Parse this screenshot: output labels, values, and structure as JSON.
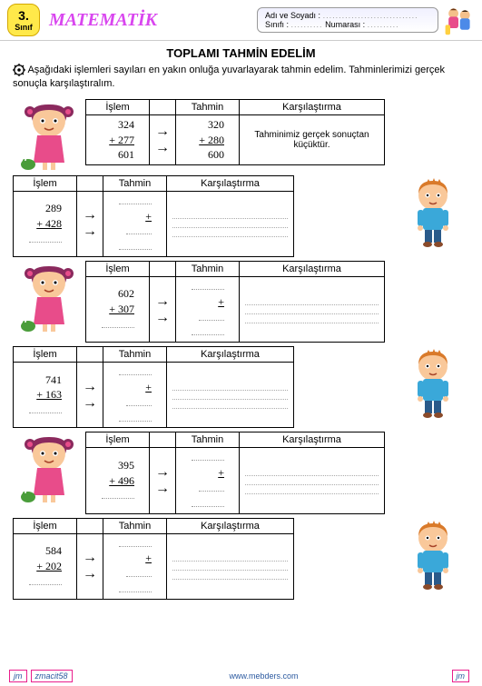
{
  "header": {
    "grade_num": "3.",
    "grade_label": "Sınıf",
    "subject": "MATEMATİK",
    "name_label": "Adı ve Soyadı :",
    "class_label": "Sınıfı :",
    "number_label": "Numarası :"
  },
  "title": "TOPLAMI  TAHMİN  EDELİM",
  "instructions": "Aşağıdaki işlemleri sayıları  en yakın onluğa  yuvarlayarak tahmin edelim. Tahminlerimizi  gerçek  sonuçla karşılaştıralım.",
  "labels": {
    "islem": "İşlem",
    "tahmin": "Tahmin",
    "karsilastirma": "Karşılaştırma"
  },
  "example": {
    "a": "324",
    "b": "+ 277",
    "sum": "601",
    "ta": "320",
    "tb": "+ 280",
    "tsum": "600",
    "compare": "Tahminimiz gerçek sonuçtan küçüktür."
  },
  "problems": [
    {
      "a": "289",
      "b": "+ 428"
    },
    {
      "a": "602",
      "b": "+ 307"
    },
    {
      "a": "741",
      "b": "+ 163"
    },
    {
      "a": "395",
      "b": "+ 496"
    },
    {
      "a": "584",
      "b": "+ 202"
    }
  ],
  "footer": {
    "tag1": "jm",
    "tag2": "zmacit58",
    "url": "www.mebders.com",
    "tag3": "jm"
  },
  "colors": {
    "magenta": "#d946ef",
    "badge_bg": "#ffe94a",
    "link": "#2c5aa0"
  }
}
